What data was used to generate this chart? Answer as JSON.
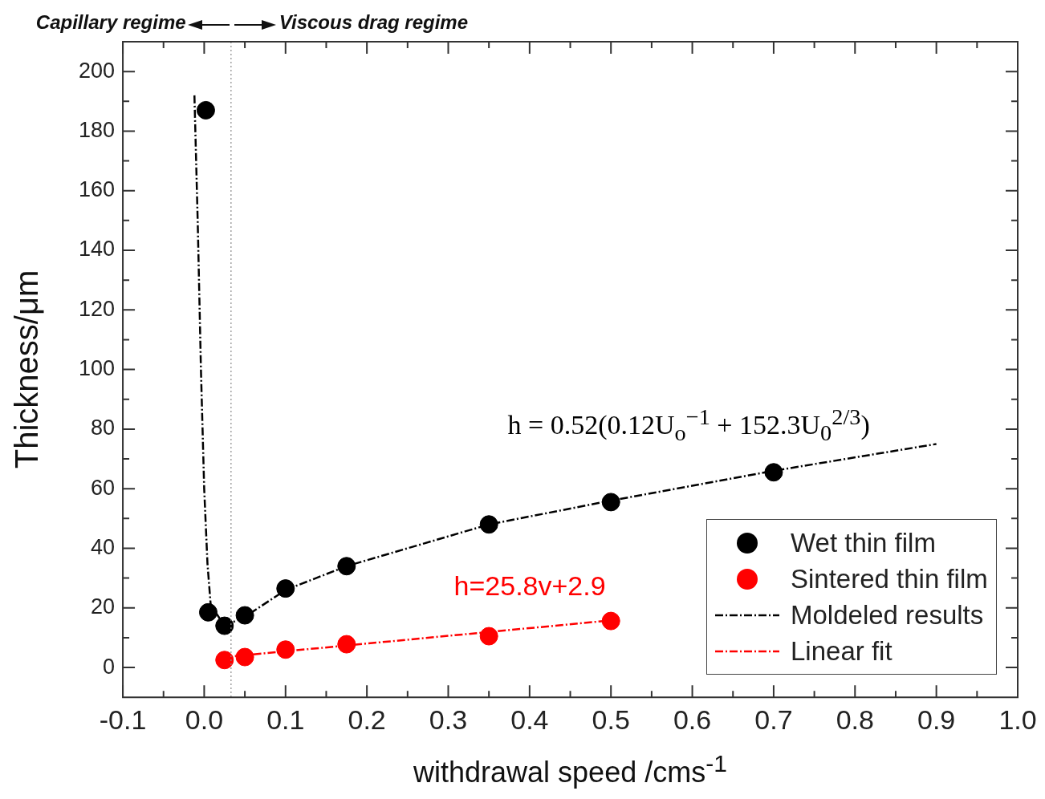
{
  "chart_data": {
    "type": "scatter",
    "xlabel": "withdrawal speed /cms$^{-1}$",
    "ylabel": "Thickness/μm",
    "xlim": [
      -0.1,
      1.0
    ],
    "xticks": [
      -0.1,
      {
        "value": -0.05,
        "label": null
      },
      "0.0",
      {
        "value": 0.05,
        "label": null
      },
      0.1,
      {
        "value": 0.15,
        "label": null
      },
      0.2,
      {
        "value": 0.25,
        "label": null
      },
      0.3,
      {
        "value": 0.35,
        "label": null
      },
      0.4,
      {
        "value": 0.45,
        "label": null
      },
      0.5,
      {
        "value": 0.55,
        "label": null
      },
      0.6,
      {
        "value": 0.65,
        "label": null
      },
      0.7,
      {
        "value": 0.75,
        "label": null
      },
      0.8,
      {
        "value": 0.85,
        "label": null
      },
      0.9,
      {
        "value": 0.95,
        "label": null
      },
      "1.0"
    ],
    "ylim": [
      -10,
      210
    ],
    "yticks": [
      0,
      {
        "value": 10,
        "label": null
      },
      20,
      {
        "value": 30,
        "label": null
      },
      40,
      {
        "value": 50,
        "label": null
      },
      60,
      {
        "value": 70,
        "label": null
      },
      80,
      {
        "value": 90,
        "label": null
      },
      100,
      {
        "value": 110,
        "label": null
      },
      120,
      {
        "value": 130,
        "label": null
      },
      140,
      {
        "value": 150,
        "label": null
      },
      160,
      {
        "value": 170,
        "label": null
      },
      180,
      {
        "value": 190,
        "label": null
      },
      200
    ],
    "grid": false,
    "legend": "bottom right",
    "series": [
      {
        "name": "Moldeled results",
        "type": "line",
        "color": "#000000",
        "marker": "none",
        "line_style": "dashed",
        "x": [
          -0.012,
          -0.008,
          -0.004,
          0.0,
          0.004,
          0.008,
          0.025,
          0.05,
          0.1,
          0.175,
          0.35,
          0.5,
          0.7,
          0.9
        ],
        "values": [
          192,
          150,
          100,
          60,
          35,
          21,
          14,
          17,
          26,
          34,
          48,
          56,
          66,
          75
        ]
      },
      {
        "name": "Linear fit",
        "type": "line",
        "color": "#ff0000",
        "marker": "none",
        "line_style": "dashed",
        "x": [
          0.025,
          0.5
        ],
        "values": [
          3.5,
          15.8
        ]
      },
      {
        "name": "Wet thin film",
        "color": "#000000",
        "marker": "circle",
        "x": [
          0.002,
          0.005,
          0.025,
          0.05,
          0.1,
          0.175,
          0.35,
          0.5,
          0.7
        ],
        "values": [
          187,
          18.5,
          14,
          17.5,
          26.5,
          34,
          48,
          55.5,
          65.5
        ]
      },
      {
        "name": "Sintered thin film",
        "color": "#ff0000",
        "marker": "circle",
        "x": [
          0.025,
          0.05,
          0.1,
          0.175,
          0.35,
          0.5
        ],
        "values": [
          2.5,
          3.5,
          6,
          7.8,
          10.5,
          15.6
        ]
      }
    ],
    "ref_lines": [
      {
        "axis": "x",
        "value": 0.033,
        "line_style": "dotted",
        "color": "#888888"
      }
    ],
    "annotations": [
      "h = 0.52(0.12U$_{o}$$^{−1}$ + 152.3U$_{0}$$^{2/3}$)",
      "h=25.8v+2.9",
      "Capillary regime",
      "Viscous drag regime"
    ]
  }
}
